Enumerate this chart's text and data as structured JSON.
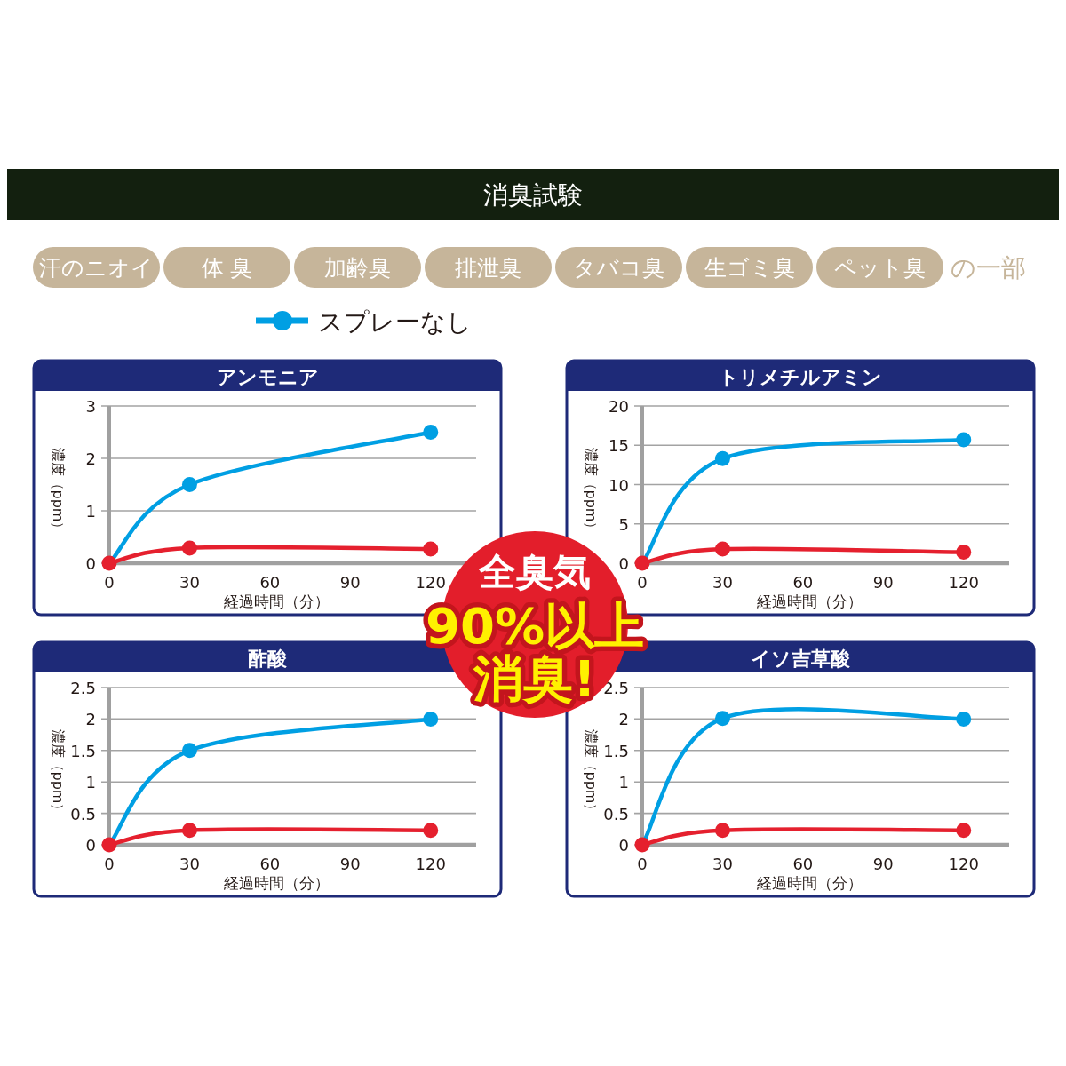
{
  "chart_data": [
    {
      "type": "other",
      "title": "消臭試験",
      "annotations": [
        "汗のニオイ",
        "体 臭",
        "加齢臭",
        "排泄臭",
        "タバコ臭",
        "生ゴミ臭",
        "ペット臭",
        "の一部"
      ]
    },
    {
      "type": "line",
      "title": "アンモニア",
      "xlabel": "経過時間（分）",
      "ylabel": "濃度（ppm）",
      "x": [
        0,
        30,
        120
      ],
      "xlim": [
        0,
        137
      ],
      "xticks": [
        0,
        30,
        60,
        90,
        120
      ],
      "ylim": [
        0,
        3
      ],
      "yticks": [
        0,
        1,
        2,
        3
      ],
      "grid": "y",
      "marker": "circle",
      "legend": "top",
      "series": [
        {
          "name": "スプレーなし",
          "color": "#009fe3",
          "values": [
            0,
            1.5,
            2.5
          ]
        },
        {
          "color": "#e5202e",
          "values": [
            0,
            0.29,
            0.27
          ]
        }
      ]
    },
    {
      "type": "line",
      "title": "トリメチルアミン",
      "xlabel": "経過時間（分）",
      "ylabel": "濃度（ppm）",
      "x": [
        0,
        30,
        120
      ],
      "xlim": [
        0,
        137
      ],
      "xticks": [
        0,
        30,
        60,
        90,
        120
      ],
      "ylim": [
        0,
        20
      ],
      "yticks": [
        0,
        5,
        10,
        15,
        20
      ],
      "grid": "y",
      "marker": "circle",
      "series": [
        {
          "color": "#009fe3",
          "values": [
            0,
            13.3,
            15.7
          ]
        },
        {
          "color": "#e5202e",
          "values": [
            0,
            1.8,
            1.4
          ]
        }
      ]
    },
    {
      "type": "line",
      "title": "酢酸",
      "xlabel": "経過時間（分）",
      "ylabel": "濃度（ppm）",
      "x": [
        0,
        30,
        120
      ],
      "xlim": [
        0,
        137
      ],
      "xticks": [
        0,
        30,
        60,
        90,
        120
      ],
      "ylim": [
        0,
        2.5
      ],
      "yticks": [
        0,
        0.5,
        1,
        1.5,
        2,
        2.5
      ],
      "grid": "y",
      "marker": "circle",
      "series": [
        {
          "color": "#009fe3",
          "values": [
            0,
            1.5,
            2.0
          ]
        },
        {
          "color": "#e5202e",
          "values": [
            0,
            0.23,
            0.23
          ]
        }
      ]
    },
    {
      "type": "line",
      "title": "イソ吉草酸",
      "xlabel": "経過時間（分）",
      "ylabel": "濃度（ppm）",
      "x": [
        0,
        30,
        120
      ],
      "xlim": [
        0,
        137
      ],
      "xticks": [
        0,
        30,
        60,
        90,
        120
      ],
      "ylim": [
        0,
        2.5
      ],
      "yticks": [
        0,
        0.5,
        1,
        1.5,
        2,
        2.5
      ],
      "grid": "y",
      "marker": "circle",
      "series": [
        {
          "color": "#009fe3",
          "values": [
            0,
            2.01,
            2.0
          ]
        },
        {
          "color": "#e5202e",
          "values": [
            0,
            0.23,
            0.23
          ]
        }
      ]
    },
    {
      "type": "other",
      "annotations": [
        "全臭気",
        "90%以上",
        "消臭!"
      ]
    }
  ]
}
